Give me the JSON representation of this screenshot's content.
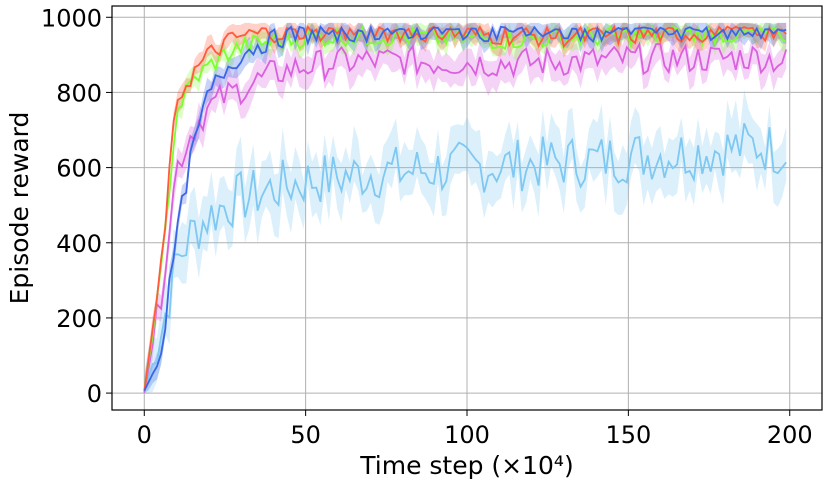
{
  "chart_data": {
    "type": "line",
    "title": "",
    "xlabel": "Time step (×10⁴)",
    "ylabel": "Episode reward",
    "xlim": [
      -10,
      210
    ],
    "ylim": [
      -45,
      1030
    ],
    "xticks": [
      0,
      50,
      100,
      150,
      200
    ],
    "yticks": [
      0,
      200,
      400,
      600,
      800,
      1000
    ],
    "grid": true,
    "legend": "none",
    "x": [
      0,
      5,
      10,
      15,
      20,
      25,
      30,
      35,
      40,
      45,
      50,
      60,
      70,
      80,
      90,
      100,
      110,
      120,
      130,
      140,
      150,
      160,
      170,
      180,
      190,
      200
    ],
    "series": [
      {
        "color": "#ff5a3c",
        "values": [
          5,
          320,
          780,
          850,
          900,
          930,
          950,
          955,
          960,
          960,
          962,
          962,
          963,
          960,
          958,
          955,
          952,
          950,
          948,
          950,
          952,
          955,
          957,
          960,
          962,
          960
        ],
        "band": 30
      },
      {
        "color": "#7cff2f",
        "values": [
          5,
          300,
          750,
          830,
          870,
          900,
          920,
          930,
          935,
          940,
          945,
          950,
          950,
          948,
          945,
          945,
          940,
          942,
          945,
          948,
          950,
          952,
          955,
          955,
          955,
          955
        ],
        "band": 30
      },
      {
        "color": "#3a66e6",
        "values": [
          5,
          100,
          420,
          650,
          800,
          860,
          900,
          925,
          940,
          950,
          955,
          960,
          962,
          965,
          965,
          965,
          962,
          960,
          960,
          962,
          965,
          965,
          965,
          965,
          965,
          960
        ],
        "band": 30
      },
      {
        "color": "#da60e0",
        "values": [
          5,
          250,
          600,
          700,
          760,
          790,
          810,
          830,
          850,
          860,
          870,
          880,
          885,
          885,
          880,
          880,
          878,
          880,
          882,
          885,
          890,
          890,
          890,
          892,
          895,
          880
        ],
        "band": 45
      },
      {
        "color": "#7ec8f2",
        "values": [
          5,
          150,
          350,
          430,
          470,
          500,
          520,
          530,
          545,
          555,
          565,
          575,
          585,
          590,
          595,
          600,
          605,
          610,
          615,
          620,
          630,
          635,
          640,
          650,
          660,
          640
        ],
        "band": 80
      }
    ]
  }
}
